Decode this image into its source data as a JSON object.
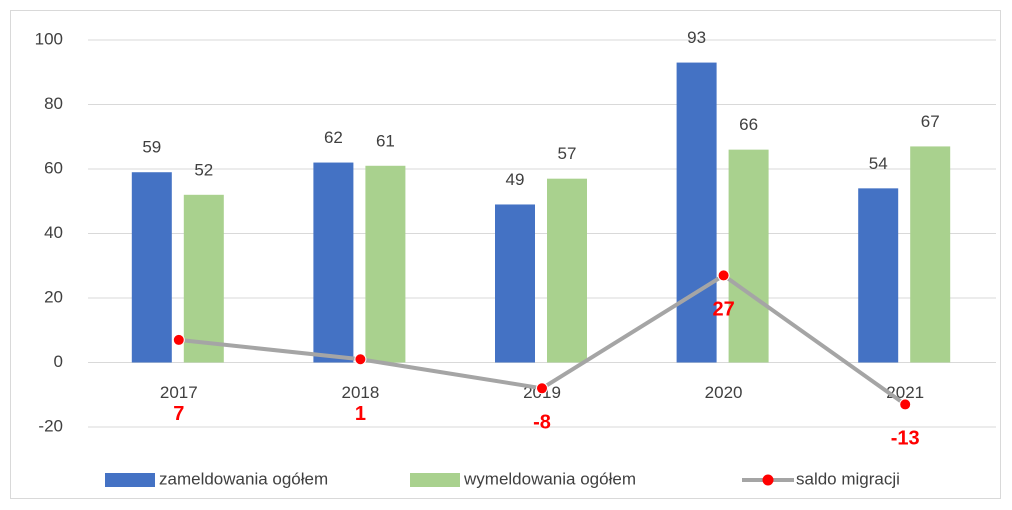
{
  "chart_data": {
    "type": "bar-line",
    "categories": [
      "2017",
      "2018",
      "2019",
      "2020",
      "2021"
    ],
    "series": [
      {
        "name": "zameldowania ogółem",
        "color": "#4472c4",
        "type": "bar",
        "values": [
          59,
          62,
          49,
          93,
          54
        ]
      },
      {
        "name": "wymeldowania ogółem",
        "color": "#a9d18e",
        "type": "bar",
        "values": [
          52,
          61,
          57,
          66,
          67
        ]
      },
      {
        "name": "saldo migracji",
        "color": "#a5a5a5",
        "marker_color": "#ff0000",
        "label_color": "#ff0000",
        "type": "line",
        "values": [
          7,
          1,
          -8,
          27,
          -13
        ]
      }
    ],
    "ylim": [
      -20,
      100
    ],
    "yticks": [
      -20,
      0,
      20,
      40,
      60,
      80,
      100
    ],
    "grid": true,
    "legend": "bottom"
  }
}
